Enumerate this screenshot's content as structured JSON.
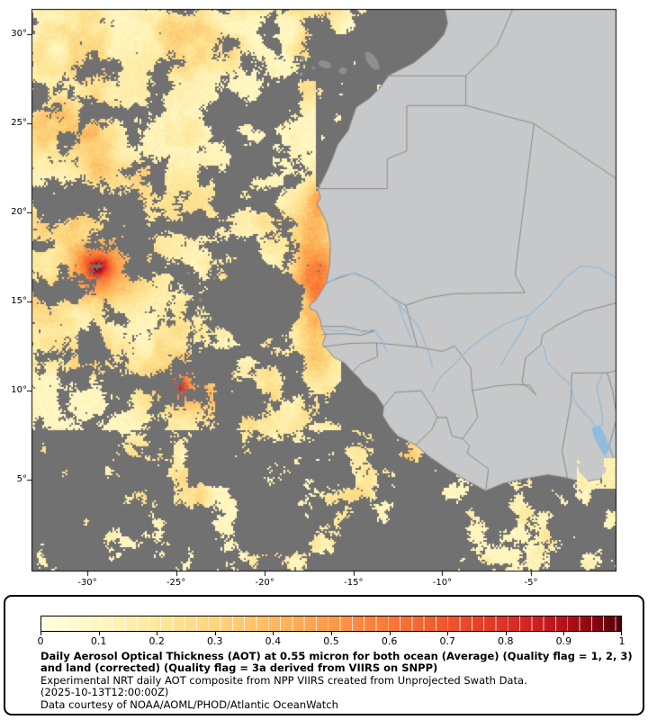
{
  "colors": {
    "ocean_nodata": "#717171",
    "land": "#c7c8c9",
    "coast_border": "#8a8a8a",
    "country_border": "#8a8a8a",
    "river": "#8fbcdc",
    "island": "#8b8f92",
    "frame": "#000000",
    "panel_bg": "#ffffff",
    "panel_border": "#000000"
  },
  "map": {
    "lat_ticks": [
      {
        "value": 30,
        "label": "30°"
      },
      {
        "value": 25,
        "label": "25°"
      },
      {
        "value": 20,
        "label": "20°"
      },
      {
        "value": 15,
        "label": "15°"
      },
      {
        "value": 10,
        "label": "10°"
      },
      {
        "value": 5,
        "label": "5°"
      }
    ],
    "lon_ticks": [
      {
        "value": -30,
        "label": "-30°"
      },
      {
        "value": -25,
        "label": "-25°"
      },
      {
        "value": -20,
        "label": "-20°"
      },
      {
        "value": -15,
        "label": "-15°"
      },
      {
        "value": -10,
        "label": "-10°"
      },
      {
        "value": -5,
        "label": "-5°"
      }
    ]
  },
  "geo": {
    "coast": [
      [
        -9.9,
        31.7
      ],
      [
        -9.7,
        30.6
      ],
      [
        -9.9,
        30.0
      ],
      [
        -10.5,
        29.3
      ],
      [
        -11.6,
        28.4
      ],
      [
        -13.0,
        27.7
      ],
      [
        -13.5,
        27.0
      ],
      [
        -14.1,
        26.4
      ],
      [
        -14.85,
        25.9
      ],
      [
        -15.3,
        24.6
      ],
      [
        -15.9,
        23.8
      ],
      [
        -16.2,
        23.0
      ],
      [
        -16.5,
        22.3
      ],
      [
        -17.0,
        21.3
      ],
      [
        -16.85,
        20.8
      ],
      [
        -17.05,
        20.5
      ],
      [
        -16.5,
        19.4
      ],
      [
        -16.3,
        18.2
      ],
      [
        -16.35,
        17.0
      ],
      [
        -16.53,
        16.05
      ],
      [
        -17.1,
        15.1
      ],
      [
        -17.48,
        14.78
      ],
      [
        -17.45,
        14.6
      ],
      [
        -17.1,
        14.45
      ],
      [
        -16.85,
        13.9
      ],
      [
        -16.8,
        13.5
      ],
      [
        -16.55,
        13.15
      ],
      [
        -16.75,
        12.6
      ],
      [
        -16.4,
        12.25
      ],
      [
        -16.15,
        11.9
      ],
      [
        -15.5,
        11.55
      ],
      [
        -15.05,
        11.05
      ],
      [
        -14.65,
        10.68
      ],
      [
        -14.4,
        10.3
      ],
      [
        -13.75,
        9.8
      ],
      [
        -13.3,
        9.1
      ],
      [
        -13.35,
        8.6
      ],
      [
        -12.95,
        7.95
      ],
      [
        -12.5,
        7.45
      ],
      [
        -11.5,
        6.95
      ],
      [
        -10.8,
        6.35
      ],
      [
        -9.65,
        5.55
      ],
      [
        -8.6,
        4.95
      ],
      [
        -7.55,
        4.38
      ],
      [
        -6.6,
        4.78
      ],
      [
        -5.55,
        5.02
      ],
      [
        -4.05,
        5.28
      ],
      [
        -3.1,
        5.12
      ],
      [
        -2.1,
        4.88
      ],
      [
        -1.2,
        5.02
      ],
      [
        -0.1,
        5.55
      ]
    ],
    "borders": [
      [
        [
          -13.2,
          27.66
        ],
        [
          -8.67,
          27.66
        ]
      ],
      [
        [
          -8.67,
          27.66
        ],
        [
          -6.9,
          29.4
        ],
        [
          -5.9,
          31.7
        ]
      ],
      [
        [
          -8.67,
          27.66
        ],
        [
          -8.67,
          26.0
        ],
        [
          -12.0,
          26.0
        ],
        [
          -12.0,
          23.45
        ],
        [
          -13.1,
          23.0
        ],
        [
          -13.1,
          21.33
        ],
        [
          -16.95,
          21.33
        ]
      ],
      [
        [
          -8.67,
          26.0
        ],
        [
          -4.83,
          24.98
        ]
      ],
      [
        [
          -4.83,
          24.98
        ],
        [
          -0.05,
          21.8
        ]
      ],
      [
        [
          -4.83,
          24.98
        ],
        [
          -5.9,
          16.5
        ],
        [
          -5.35,
          15.5
        ],
        [
          -9.35,
          15.44
        ],
        [
          -10.85,
          15.2
        ],
        [
          -12.05,
          14.78
        ],
        [
          -12.9,
          15.25
        ],
        [
          -13.9,
          16.15
        ],
        [
          -15.0,
          16.6
        ],
        [
          -16.53,
          16.06
        ]
      ],
      [
        [
          -12.05,
          14.78
        ],
        [
          -11.4,
          12.45
        ]
      ],
      [
        [
          -11.4,
          12.45
        ],
        [
          -13.7,
          12.68
        ],
        [
          -15.2,
          12.65
        ],
        [
          -16.75,
          12.45
        ]
      ],
      [
        [
          -13.7,
          12.68
        ],
        [
          -13.65,
          11.9
        ],
        [
          -14.6,
          11.5
        ],
        [
          -15.05,
          11.05
        ]
      ],
      [
        [
          -16.8,
          13.6
        ],
        [
          -15.5,
          13.6
        ],
        [
          -14.6,
          13.35
        ],
        [
          -13.85,
          13.35
        ]
      ],
      [
        [
          -16.78,
          13.15
        ],
        [
          -15.5,
          13.2
        ],
        [
          -14.6,
          13.1
        ],
        [
          -13.85,
          13.35
        ]
      ],
      [
        [
          -11.4,
          12.45
        ],
        [
          -10.0,
          12.2
        ],
        [
          -9.3,
          12.5
        ],
        [
          -8.4,
          11.3
        ],
        [
          -8.3,
          10.0
        ]
      ],
      [
        [
          -8.3,
          10.0
        ],
        [
          -8.0,
          8.5
        ],
        [
          -8.85,
          7.3
        ],
        [
          -8.45,
          6.9
        ],
        [
          -8.6,
          6.5
        ],
        [
          -7.4,
          5.6
        ],
        [
          -7.55,
          4.38
        ]
      ],
      [
        [
          -13.3,
          9.1
        ],
        [
          -12.65,
          9.9
        ],
        [
          -11.2,
          10.0
        ],
        [
          -10.6,
          9.1
        ],
        [
          -10.27,
          8.49
        ]
      ],
      [
        [
          -11.5,
          6.95
        ],
        [
          -10.6,
          7.8
        ],
        [
          -10.27,
          8.49
        ]
      ],
      [
        [
          -8.85,
          7.3
        ],
        [
          -9.45,
          7.45
        ],
        [
          -9.75,
          8.5
        ],
        [
          -10.27,
          8.49
        ]
      ],
      [
        [
          -8.3,
          10.0
        ],
        [
          -7.0,
          10.25
        ],
        [
          -6.0,
          10.35
        ],
        [
          -5.1,
          10.3
        ],
        [
          -4.7,
          9.75
        ]
      ],
      [
        [
          -0.05,
          14.95
        ],
        [
          -1.9,
          14.48
        ],
        [
          -3.5,
          13.7
        ],
        [
          -4.35,
          13.15
        ],
        [
          -4.45,
          12.55
        ],
        [
          -5.3,
          11.85
        ],
        [
          -5.5,
          10.45
        ],
        [
          -4.7,
          9.75
        ]
      ],
      [
        [
          -2.75,
          9.4
        ],
        [
          -2.7,
          10.98
        ],
        [
          -0.7,
          11.0
        ]
      ],
      [
        [
          -2.75,
          9.4
        ],
        [
          -3.25,
          6.6
        ],
        [
          -2.95,
          5.12
        ]
      ],
      [
        [
          -0.7,
          11.0
        ],
        [
          -0.4,
          10.0
        ],
        [
          -0.15,
          8.5
        ],
        [
          -0.6,
          6.9
        ],
        [
          -0.3,
          6.1
        ]
      ],
      [
        [
          -0.7,
          11.0
        ],
        [
          -0.05,
          11.15
        ]
      ]
    ],
    "rivers": [
      [
        [
          -16.5,
          16.02
        ],
        [
          -15.7,
          16.45
        ],
        [
          -14.9,
          16.6
        ],
        [
          -14.1,
          16.25
        ],
        [
          -13.35,
          15.65
        ],
        [
          -12.5,
          14.9
        ],
        [
          -11.8,
          14.15
        ],
        [
          -11.35,
          13.6
        ],
        [
          -11.05,
          12.85
        ],
        [
          -10.75,
          12.1
        ],
        [
          -10.55,
          11.3
        ]
      ],
      [
        [
          -12.5,
          14.9
        ],
        [
          -12.15,
          13.9
        ],
        [
          -11.75,
          12.9
        ]
      ],
      [
        [
          -16.55,
          13.45
        ],
        [
          -15.75,
          13.33
        ],
        [
          -15.1,
          13.55
        ],
        [
          -14.45,
          13.3
        ],
        [
          -13.85,
          13.42
        ],
        [
          -13.35,
          12.75
        ],
        [
          -13.1,
          12.1
        ]
      ],
      [
        [
          -10.55,
          9.9
        ],
        [
          -10.15,
          10.7
        ],
        [
          -9.35,
          11.45
        ],
        [
          -8.5,
          12.35
        ],
        [
          -7.7,
          12.95
        ],
        [
          -6.85,
          13.55
        ],
        [
          -5.95,
          13.95
        ],
        [
          -5.1,
          14.25
        ],
        [
          -4.4,
          14.85
        ],
        [
          -3.75,
          15.5
        ],
        [
          -3.05,
          16.35
        ],
        [
          -2.2,
          17.0
        ],
        [
          -1.2,
          16.9
        ],
        [
          -0.4,
          16.45
        ],
        [
          -0.05,
          16.2
        ]
      ],
      [
        [
          -6.7,
          11.4
        ],
        [
          -6.15,
          12.4
        ],
        [
          -5.55,
          13.3
        ],
        [
          -5.1,
          14.25
        ]
      ],
      [
        [
          -4.3,
          12.55
        ],
        [
          -4.1,
          11.6
        ],
        [
          -3.35,
          10.85
        ],
        [
          -2.75,
          10.3
        ],
        [
          -2.55,
          9.4
        ],
        [
          -1.95,
          8.7
        ],
        [
          -1.5,
          8.2
        ],
        [
          -1.35,
          7.9
        ]
      ],
      [
        [
          -0.95,
          11.05
        ],
        [
          -1.3,
          10.15
        ],
        [
          -1.1,
          9.25
        ],
        [
          -0.95,
          8.4
        ],
        [
          -1.0,
          8.0
        ]
      ],
      [
        [
          -0.85,
          6.4
        ],
        [
          -0.55,
          5.9
        ],
        [
          -0.3,
          5.6
        ]
      ]
    ],
    "lake_volta": [
      [
        -1.6,
        7.9
      ],
      [
        -1.15,
        8.05
      ],
      [
        -0.8,
        7.45
      ],
      [
        -0.55,
        6.75
      ],
      [
        -0.85,
        6.3
      ],
      [
        -1.2,
        6.9
      ],
      [
        -1.45,
        7.4
      ]
    ],
    "islands": [
      [
        -13.95,
        28.5,
        0.27,
        0.6,
        -35
      ],
      [
        -15.6,
        27.95,
        0.22,
        0.2,
        0
      ],
      [
        -16.62,
        28.3,
        0.38,
        0.2,
        15
      ],
      [
        -17.25,
        28.1,
        0.1,
        0.09,
        0
      ],
      [
        -17.87,
        28.66,
        0.14,
        0.13,
        0
      ],
      [
        -17.95,
        27.76,
        0.11,
        0.1,
        0
      ]
    ],
    "cape_verde": [
      [
        -25.05,
        17.1,
        0.09,
        0.07,
        0
      ],
      [
        -24.3,
        16.6,
        0.08,
        0.07,
        0
      ],
      [
        -22.85,
        16.3,
        0.08,
        0.07,
        0
      ],
      [
        -23.62,
        15.1,
        0.1,
        0.09,
        0
      ],
      [
        -24.4,
        14.95,
        0.08,
        0.07,
        0
      ]
    ]
  },
  "aerosol": {
    "threshold": 0.5,
    "regions": [
      {
        "lat": [
          0,
          7.8
        ],
        "lon": [
          -33.3,
          -8.0
        ],
        "base": 0.34
      },
      {
        "lat": [
          0,
          6.3
        ],
        "lon": [
          -8.0,
          -0.05
        ],
        "base": 0.36
      },
      {
        "lat": [
          7.8,
          19.5
        ],
        "lon": [
          -33.3,
          -15.8
        ],
        "base": 0.55
      },
      {
        "lat": [
          19.5,
          31.7
        ],
        "lon": [
          -33.3,
          -17.2
        ],
        "base": 0.62
      },
      {
        "lat": [
          19.5,
          29.5
        ],
        "lon": [
          -17.2,
          -13.5
        ],
        "base": 0.16
      },
      {
        "lat": [
          30.1,
          31.7
        ],
        "lon": [
          -33.3,
          -14.2
        ],
        "base": 0.55
      }
    ],
    "coverage_gaussians": [
      [
        -20.3,
        14.6,
        2.3,
        2.6,
        -0.6
      ],
      [
        -30.8,
        20.8,
        2.2,
        1.4,
        -0.5
      ],
      [
        -19.5,
        27.0,
        1.6,
        2.2,
        -0.45
      ],
      [
        -21.0,
        22.3,
        1.8,
        1.8,
        -0.4
      ],
      [
        -27.5,
        22.3,
        1.5,
        1.0,
        -0.3
      ],
      [
        -22.0,
        25.5,
        1.3,
        1.3,
        -0.3
      ],
      [
        -31.2,
        4.0,
        2.5,
        3.0,
        -0.22
      ],
      [
        -17.2,
        19.2,
        1.1,
        1.9,
        0.5
      ],
      [
        -16.8,
        20.9,
        0.8,
        1.1,
        0.45
      ],
      [
        -17.1,
        15.8,
        0.8,
        1.6,
        0.45
      ],
      [
        -17.6,
        13.8,
        1.0,
        1.2,
        0.5
      ],
      [
        -17.0,
        12.0,
        1.0,
        1.5,
        0.35
      ]
    ],
    "hotspots": [
      [
        -29.0,
        17.0,
        2.6,
        2.0,
        0.4
      ],
      [
        -29.4,
        17.0,
        0.6,
        0.5,
        0.33
      ],
      [
        -24.6,
        10.3,
        2.4,
        1.6,
        0.36
      ],
      [
        -24.9,
        10.2,
        0.55,
        0.5,
        0.33
      ],
      [
        -17.35,
        18.9,
        1.3,
        2.2,
        0.3
      ],
      [
        -16.9,
        20.9,
        0.7,
        1.0,
        0.25
      ],
      [
        -17.2,
        15.8,
        0.9,
        1.8,
        0.3
      ],
      [
        -17.2,
        12.0,
        1.2,
        1.6,
        0.25
      ],
      [
        -21.5,
        9.0,
        1.8,
        1.2,
        0.22
      ],
      [
        -24.5,
        20.5,
        3.5,
        2.0,
        0.14
      ],
      [
        -30.5,
        24.5,
        3.0,
        2.5,
        0.1
      ],
      [
        -26.0,
        28.0,
        2.5,
        2.0,
        0.08
      ]
    ],
    "overlay_patches": [
      {
        "lon": [
          -2.4,
          -0.05
        ],
        "lat": [
          4.5,
          6.2
        ]
      }
    ]
  },
  "legend": {
    "colorbar": {
      "tick_labels": [
        "0",
        "0.1",
        "0.2",
        "0.3",
        "0.4",
        "0.5",
        "0.6",
        "0.7",
        "0.8",
        "0.9",
        "1"
      ],
      "stops": [
        [
          0.0,
          "#FFFEE0"
        ],
        [
          0.1,
          "#FFF6C0"
        ],
        [
          0.2,
          "#FEE89B"
        ],
        [
          0.3,
          "#FDD57E"
        ],
        [
          0.4,
          "#FDB95F"
        ],
        [
          0.5,
          "#FC9A46"
        ],
        [
          0.6,
          "#F97838"
        ],
        [
          0.7,
          "#EF562D"
        ],
        [
          0.8,
          "#DC3226"
        ],
        [
          0.85,
          "#D02023"
        ],
        [
          0.9,
          "#B5121B"
        ],
        [
          0.95,
          "#8C0712"
        ],
        [
          1.0,
          "#500006"
        ]
      ]
    },
    "caption": {
      "title": "Daily Aerosol Optical Thickness (AOT) at 0.55 micron for both ocean (Average) (Quality flag = 1, 2, 3) and land (corrected) (Quality flag = 3a derived from VIIRS on SNPP)",
      "line2": "Experimental NRT daily AOT composite from NPP VIIRS created from Unprojected Swath Data.",
      "timestamp": "(2025-10-13T12:00:00Z)",
      "credit": "Data courtesy of NOAA/AOML/PHOD/Atlantic OceanWatch"
    }
  }
}
